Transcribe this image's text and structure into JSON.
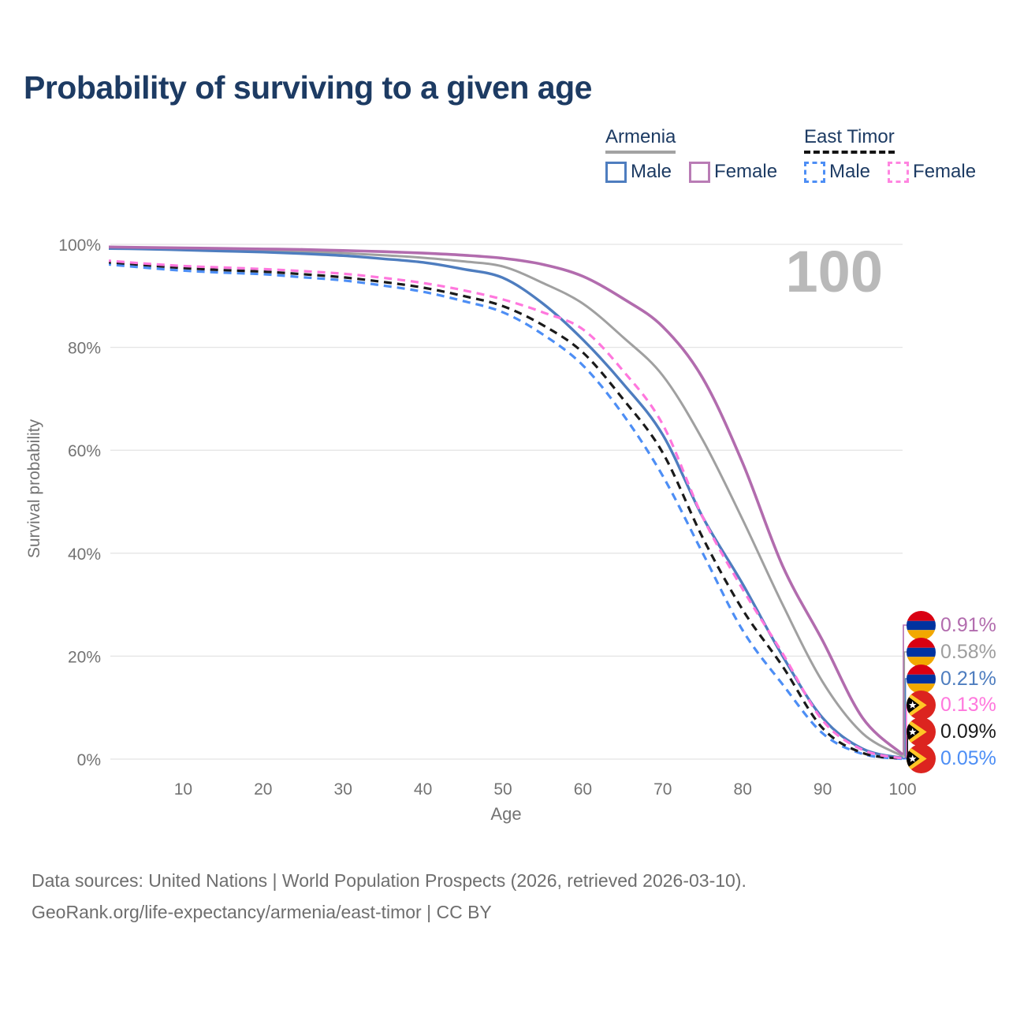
{
  "title": "Probability of surviving to a given age",
  "watermark_age": "100",
  "legend": {
    "groups": [
      {
        "name": "Armenia",
        "line_style": "solid",
        "header_underline_color": "#a2a2a2",
        "items": [
          {
            "label": "Male",
            "color": "#4e7dbf"
          },
          {
            "label": "Female",
            "color": "#b97cb5"
          }
        ]
      },
      {
        "name": "East Timor",
        "line_style": "dashed",
        "header_underline_color": "#141414",
        "items": [
          {
            "label": "Male",
            "color": "#4d8ef5"
          },
          {
            "label": "Female",
            "color": "#ff85e0"
          }
        ]
      }
    ]
  },
  "end_labels": [
    {
      "flag": "armenia",
      "series": "Armenia Female",
      "value": "0.91%",
      "color": "#b26cae"
    },
    {
      "flag": "armenia",
      "series": "Armenia Both sexes",
      "value": "0.58%",
      "color": "#9e9e9e"
    },
    {
      "flag": "armenia",
      "series": "Armenia Male",
      "value": "0.21%",
      "color": "#4e7dbf"
    },
    {
      "flag": "east-timor",
      "series": "East Timor Female",
      "value": "0.13%",
      "color": "#ff77dd"
    },
    {
      "flag": "east-timor",
      "series": "East Timor Both sexes",
      "value": "0.09%",
      "color": "#1a1a1a"
    },
    {
      "flag": "east-timor",
      "series": "East Timor Male",
      "value": "0.05%",
      "color": "#4d8ef5"
    }
  ],
  "footer": {
    "line1": "Data sources: United Nations | World Population Prospects (2026, retrieved 2026-03-10).",
    "line2": "GeoRank.org/life-expectancy/armenia/east-timor | CC BY"
  },
  "chart_data": {
    "type": "line",
    "title": "Probability of surviving to a given age",
    "xlabel": "Age",
    "ylabel": "Survival probability",
    "xlim": [
      0,
      100
    ],
    "ylim_percent": [
      0,
      100
    ],
    "x_ticks": [
      10,
      20,
      30,
      40,
      50,
      60,
      70,
      80,
      90,
      100
    ],
    "y_ticks_percent": [
      0,
      20,
      40,
      60,
      80,
      100
    ],
    "y_tick_labels": [
      "0%",
      "20%",
      "40%",
      "60%",
      "80%",
      "100%"
    ],
    "grid": "horizontal",
    "legend_position": "top-right",
    "x": [
      0,
      5,
      10,
      15,
      20,
      25,
      30,
      35,
      40,
      45,
      50,
      55,
      60,
      65,
      70,
      75,
      80,
      85,
      90,
      95,
      100
    ],
    "series": [
      {
        "name": "Armenia Both sexes",
        "country": "Armenia",
        "sex": "both",
        "style": "solid",
        "color": "#a0a0a0",
        "width": 3,
        "values_percent": [
          99.3,
          99.2,
          99.1,
          99.0,
          98.8,
          98.6,
          98.3,
          97.9,
          97.4,
          96.7,
          95.7,
          92.5,
          88.5,
          82.0,
          74.5,
          62.0,
          46.5,
          30.0,
          15.0,
          5.0,
          0.58
        ]
      },
      {
        "name": "Armenia Male",
        "country": "Armenia",
        "sex": "male",
        "style": "solid",
        "color": "#4e7dbf",
        "width": 3.4,
        "values_percent": [
          99.2,
          99.1,
          98.9,
          98.7,
          98.5,
          98.2,
          97.8,
          97.2,
          96.5,
          95.2,
          93.5,
          88.5,
          81.5,
          73.0,
          63.0,
          47.0,
          34.0,
          20.0,
          8.0,
          2.0,
          0.21
        ]
      },
      {
        "name": "Armenia Female",
        "country": "Armenia",
        "sex": "female",
        "style": "solid",
        "color": "#b26cae",
        "width": 3.6,
        "values_percent": [
          99.5,
          99.4,
          99.3,
          99.2,
          99.1,
          99.0,
          98.8,
          98.6,
          98.3,
          97.9,
          97.3,
          96.1,
          93.8,
          89.5,
          84.0,
          74.0,
          57.5,
          37.5,
          23.0,
          8.0,
          0.91
        ]
      },
      {
        "name": "East Timor Male",
        "country": "East Timor",
        "sex": "male",
        "style": "dashed",
        "color": "#4d8ef5",
        "width": 3.2,
        "values_percent": [
          96.2,
          95.5,
          94.9,
          94.5,
          94.2,
          93.6,
          93.0,
          92.0,
          90.8,
          89.0,
          86.8,
          82.5,
          76.5,
          67.0,
          55.0,
          40.0,
          25.0,
          14.5,
          5.0,
          1.0,
          0.05
        ]
      },
      {
        "name": "East Timor Both sexes",
        "country": "East Timor",
        "sex": "both",
        "style": "dashed",
        "color": "#1a1a1a",
        "width": 3.2,
        "values_percent": [
          96.6,
          96.0,
          95.4,
          95.0,
          94.7,
          94.2,
          93.6,
          92.7,
          91.6,
          90.0,
          88.0,
          84.3,
          79.0,
          70.0,
          59.5,
          43.0,
          29.0,
          18.0,
          6.0,
          1.2,
          0.09
        ]
      },
      {
        "name": "East Timor Female",
        "country": "East Timor",
        "sex": "female",
        "style": "dashed",
        "color": "#ff77dd",
        "width": 3.2,
        "values_percent": [
          96.9,
          96.3,
          95.8,
          95.5,
          95.2,
          94.8,
          94.3,
          93.5,
          92.5,
          91.1,
          89.3,
          86.8,
          83.5,
          75.5,
          65.0,
          47.0,
          33.0,
          20.5,
          7.5,
          1.8,
          0.13
        ]
      }
    ],
    "end_values_percent": {
      "Armenia Female": 0.91,
      "Armenia Both sexes": 0.58,
      "Armenia Male": 0.21,
      "East Timor Female": 0.13,
      "East Timor Both sexes": 0.09,
      "East Timor Male": 0.05
    },
    "colors": {
      "grid": "#e4e4e4",
      "tick_text": "#737373",
      "watermark": "#b9b9b9",
      "title_text": "#1d3b63"
    }
  }
}
